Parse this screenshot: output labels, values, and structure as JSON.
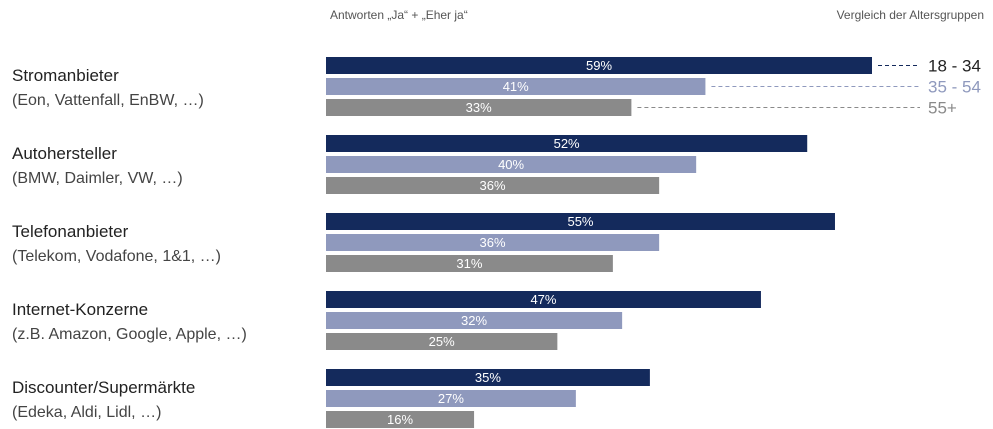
{
  "chart_data": {
    "type": "bar",
    "header_left": "Antworten „Ja“ + „Eher ja“",
    "header_right": "Vergleich der Altersgruppen",
    "xlim": [
      0,
      100
    ],
    "categories": [
      {
        "title": "Stromanbieter",
        "subtitle": "(Eon, Vattenfall, EnBW, …)"
      },
      {
        "title": "Autohersteller",
        "subtitle": "(BMW, Daimler, VW, …)"
      },
      {
        "title": "Telefonanbieter",
        "subtitle": "(Telekom, Vodafone, 1&1, …)"
      },
      {
        "title": "Internet-Konzerne",
        "subtitle": "(z.B. Amazon, Google, Apple, …)"
      },
      {
        "title": "Discounter/Supermärkte",
        "subtitle": "(Edeka, Aldi, Lidl, …)"
      }
    ],
    "series": [
      {
        "name": "18 - 34",
        "color": "#142a5c",
        "values": [
          59,
          52,
          55,
          47,
          35
        ]
      },
      {
        "name": "35 - 54",
        "color": "#8f99bd",
        "values": [
          41,
          40,
          36,
          32,
          27
        ]
      },
      {
        "name": "55+",
        "color": "#8a8a8a",
        "values": [
          33,
          36,
          31,
          25,
          16
        ]
      }
    ],
    "value_suffix": "%",
    "legend_placement": "right, beside first group",
    "grid": false
  }
}
